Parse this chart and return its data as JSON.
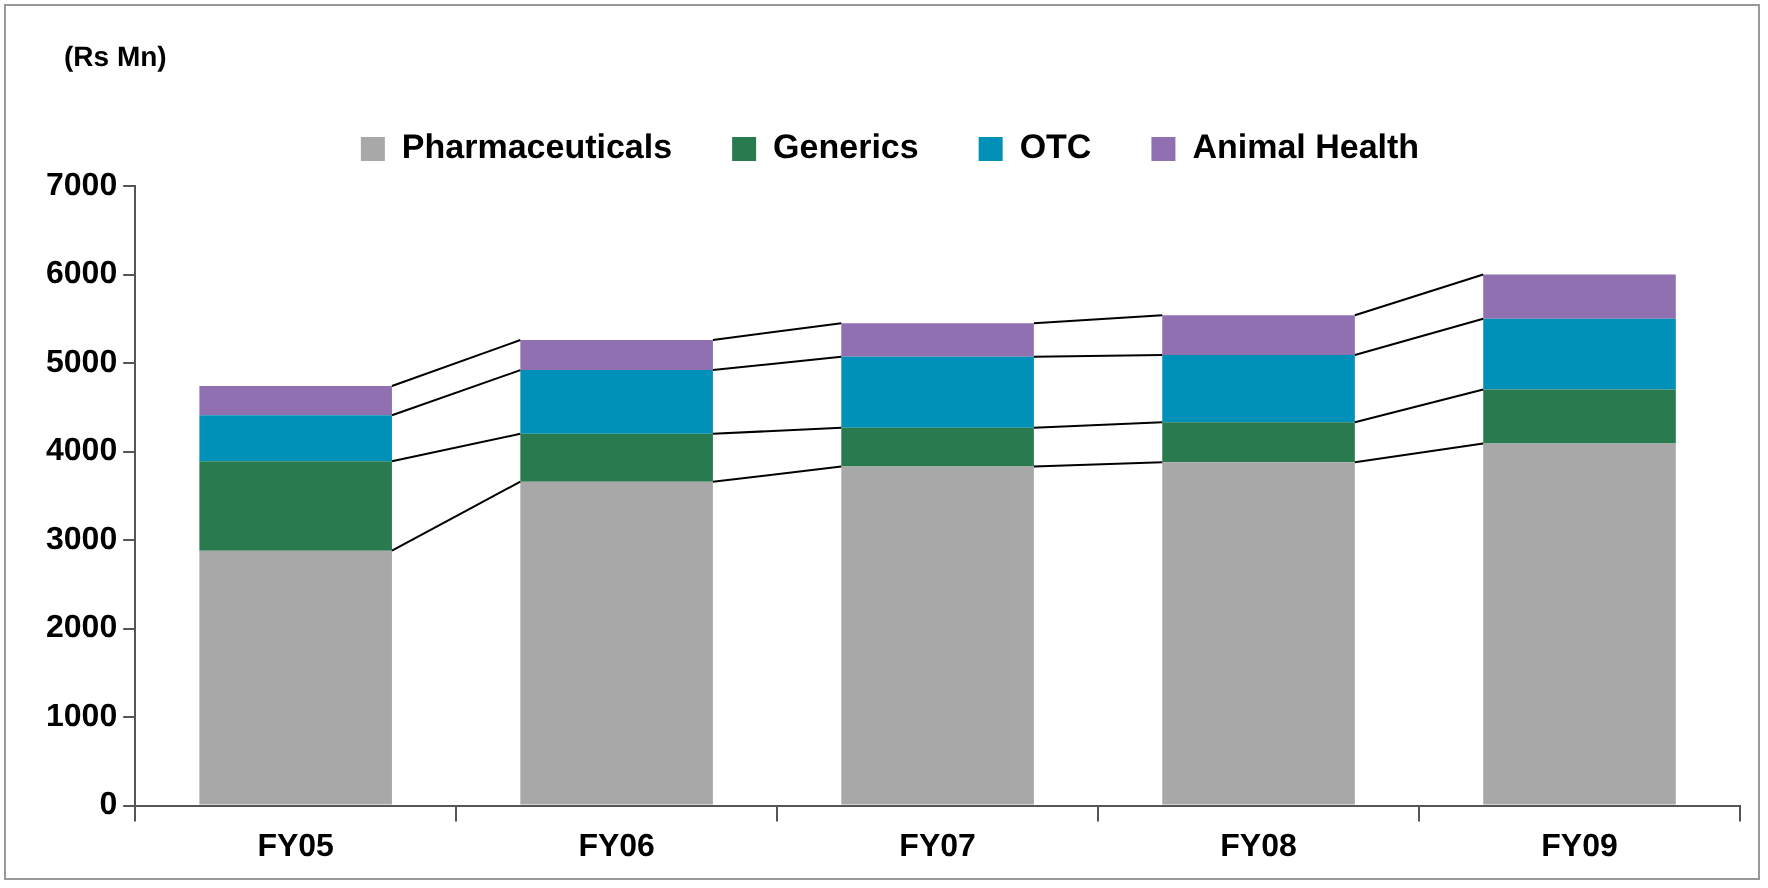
{
  "chart_data": {
    "type": "bar",
    "stacked": true,
    "ylabel": "(Rs Mn)",
    "categories": [
      "FY05",
      "FY06",
      "FY07",
      "FY08",
      "FY09"
    ],
    "series": [
      {
        "name": "Pharmaceuticals",
        "color": "#a8a8a8",
        "values": [
          2880,
          3660,
          3830,
          3880,
          4090
        ]
      },
      {
        "name": "Generics",
        "color": "#2a7a50",
        "values": [
          1010,
          540,
          440,
          450,
          610
        ]
      },
      {
        "name": "OTC",
        "color": "#0090b8",
        "values": [
          520,
          720,
          800,
          760,
          800
        ]
      },
      {
        "name": "Animal Health",
        "color": "#9070b0",
        "values": [
          330,
          340,
          380,
          450,
          500
        ]
      }
    ],
    "ylim": [
      0,
      7000
    ],
    "yticks": [
      0,
      1000,
      2000,
      3000,
      4000,
      5000,
      6000,
      7000
    ],
    "grid": false,
    "legend": "top"
  }
}
